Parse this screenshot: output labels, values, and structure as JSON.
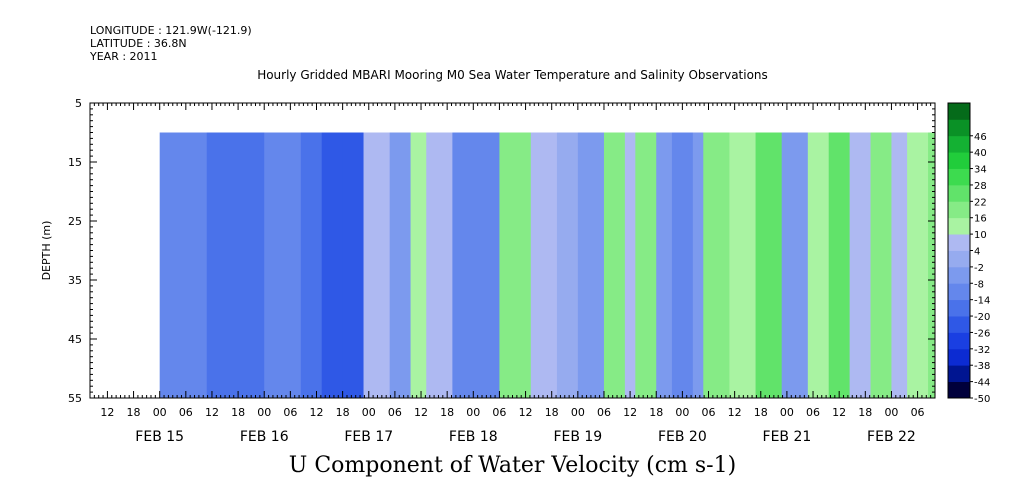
{
  "header": {
    "longitude": "LONGITUDE : 121.9W(-121.9)",
    "latitude": "LATITUDE : 36.8N",
    "year": "YEAR : 2011"
  },
  "chart_data": {
    "type": "heatmap",
    "title": "Hourly Gridded MBARI Mooring M0 Sea Water Temperature and Salinity Observations",
    "bottom_title": "U Component of Water Velocity (cm s-1)",
    "ylabel": "DEPTH (m)",
    "xlabel": "",
    "ylim": [
      55,
      5
    ],
    "y_ticks": [
      5,
      15,
      25,
      35,
      45,
      55
    ],
    "y_data_range": [
      10,
      55
    ],
    "x_axis": {
      "start": "FEB 14 08:00",
      "end": "FEB 22 10:00",
      "data_start": "FEB 15 00:00",
      "hour_tick_labels": [
        "12",
        "18",
        "00",
        "06",
        "12",
        "18",
        "00",
        "06",
        "12",
        "18",
        "00",
        "06",
        "12",
        "18",
        "00",
        "06",
        "12",
        "18",
        "00",
        "06",
        "12",
        "18",
        "00",
        "06",
        "12",
        "18",
        "00",
        "06",
        "12",
        "18",
        "00",
        "06"
      ],
      "day_labels": [
        "FEB 15",
        "FEB 16",
        "FEB 17",
        "FEB 18",
        "FEB 19",
        "FEB 20",
        "FEB 21",
        "FEB 22"
      ]
    },
    "colorbar": {
      "labels": [
        "46",
        "40",
        "34",
        "28",
        "22",
        "16",
        "10",
        "4",
        "-2",
        "-8",
        "-14",
        "-20",
        "-26",
        "-32",
        "-38",
        "-44",
        "-50"
      ],
      "range": [
        -50,
        52
      ],
      "step": 6,
      "colors": [
        "#00003c",
        "#001591",
        "#0c2bd2",
        "#1a3fe2",
        "#2f58e6",
        "#4a72ea",
        "#6487ec",
        "#7c9aee",
        "#96abef",
        "#aeb9f2",
        "#a9f3a2",
        "#86eb86",
        "#61e36a",
        "#3ddb4f",
        "#21cd3b",
        "#14b133",
        "#0a9126",
        "#056b1a"
      ]
    },
    "grid": false,
    "legend_position": "colorbar-right",
    "blocks": [
      {
        "day": 0.0,
        "value": -9
      },
      {
        "day": 0.25,
        "value": -12
      },
      {
        "day": 0.45,
        "value": -15
      },
      {
        "day": 0.75,
        "value": -17
      },
      {
        "day": 1.0,
        "value": -11
      },
      {
        "day": 1.35,
        "value": -19
      },
      {
        "day": 1.55,
        "value": -24
      },
      {
        "day": 1.75,
        "value": -21
      },
      {
        "day": 1.95,
        "value": 6
      },
      {
        "day": 2.2,
        "value": -7
      },
      {
        "day": 2.4,
        "value": 11
      },
      {
        "day": 2.55,
        "value": 4
      },
      {
        "day": 2.8,
        "value": -9
      },
      {
        "day": 3.05,
        "value": -13
      },
      {
        "day": 3.25,
        "value": 17
      },
      {
        "day": 3.55,
        "value": 9
      },
      {
        "day": 3.8,
        "value": 3
      },
      {
        "day": 4.0,
        "value": -8
      },
      {
        "day": 4.25,
        "value": 19
      },
      {
        "day": 4.45,
        "value": 5
      },
      {
        "day": 4.55,
        "value": 16
      },
      {
        "day": 4.75,
        "value": -5
      },
      {
        "day": 4.9,
        "value": -13
      },
      {
        "day": 5.1,
        "value": -4
      },
      {
        "day": 5.2,
        "value": 21
      },
      {
        "day": 5.45,
        "value": 13
      },
      {
        "day": 5.7,
        "value": 25
      },
      {
        "day": 5.95,
        "value": -6
      },
      {
        "day": 6.2,
        "value": 14
      },
      {
        "day": 6.4,
        "value": 25
      },
      {
        "day": 6.6,
        "value": 8
      },
      {
        "day": 6.8,
        "value": 16
      },
      {
        "day": 7.0,
        "value": 5
      },
      {
        "day": 7.15,
        "value": 11
      },
      {
        "day": 7.35,
        "value": 18
      }
    ]
  }
}
